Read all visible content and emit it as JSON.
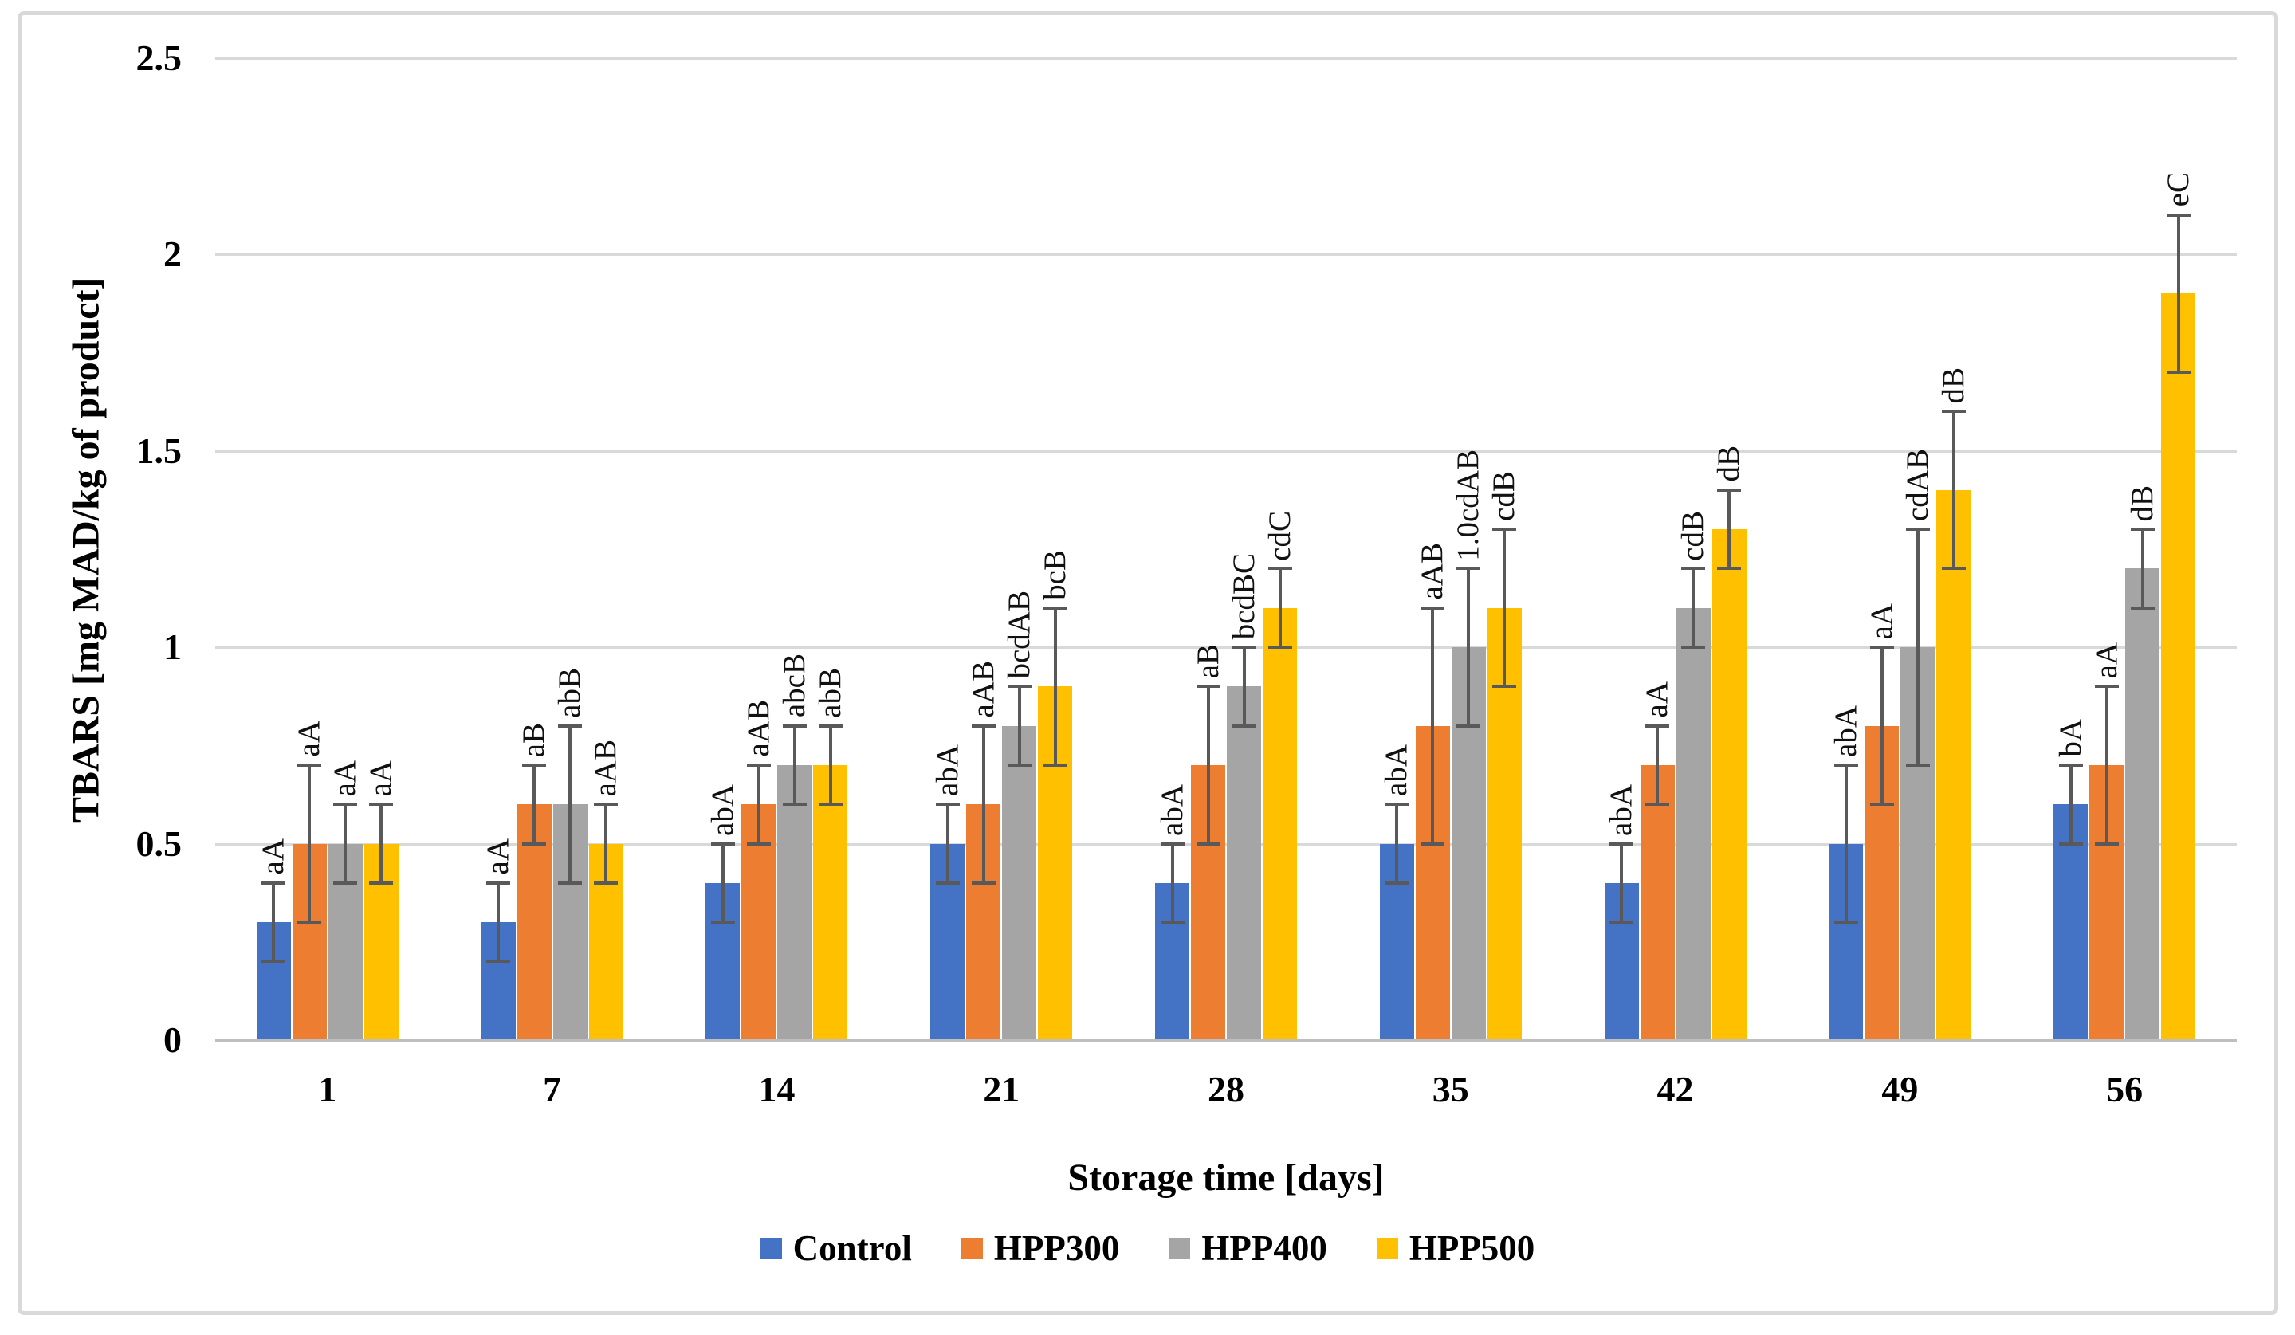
{
  "chart_data": {
    "type": "bar",
    "title": "",
    "xlabel": "Storage time [days]",
    "ylabel": "TBARS [mg MAD/kg of product]",
    "categories": [
      "1",
      "7",
      "14",
      "21",
      "28",
      "35",
      "42",
      "49",
      "56"
    ],
    "ylim": [
      0,
      2.5
    ],
    "yticks": [
      "0",
      "0.5",
      "1",
      "1.5",
      "2",
      "2.5"
    ],
    "grid": true,
    "legend_position": "bottom",
    "error_bar_color": "#595959",
    "gridline_color": "#D9D9D9",
    "axis_line_color": "#BFBFBF",
    "series": [
      {
        "name": "Control",
        "color": "#4472C4",
        "values": [
          0.3,
          0.3,
          0.4,
          0.5,
          0.4,
          0.5,
          0.4,
          0.5,
          0.6
        ],
        "errors": [
          0.1,
          0.1,
          0.1,
          0.1,
          0.1,
          0.1,
          0.1,
          0.2,
          0.1
        ],
        "labels": [
          "aA",
          "aA",
          "abA",
          "abA",
          "abA",
          "abA",
          "abA",
          "abA",
          "bA"
        ]
      },
      {
        "name": "HPP300",
        "color": "#ED7D31",
        "values": [
          0.5,
          0.6,
          0.6,
          0.6,
          0.7,
          0.8,
          0.7,
          0.8,
          0.7
        ],
        "errors": [
          0.2,
          0.1,
          0.1,
          0.2,
          0.2,
          0.3,
          0.1,
          0.2,
          0.2
        ],
        "labels": [
          "aA",
          "aB",
          "aAB",
          "aAB",
          "aB",
          "aAB",
          "aA",
          "aA",
          "aA"
        ]
      },
      {
        "name": "HPP400",
        "color": "#A5A5A5",
        "values": [
          0.5,
          0.6,
          0.7,
          0.8,
          0.9,
          1.0,
          1.1,
          1.0,
          1.2
        ],
        "errors": [
          0.1,
          0.2,
          0.1,
          0.1,
          0.1,
          0.2,
          0.1,
          0.3,
          0.1
        ],
        "labels": [
          "aA",
          "abB",
          "abcB",
          "bcdAB",
          "bcdBC",
          "1.0cdAB",
          "cdB",
          "cdAB",
          "dB"
        ]
      },
      {
        "name": "HPP500",
        "color": "#FFC000",
        "values": [
          0.5,
          0.5,
          0.7,
          0.9,
          1.1,
          1.1,
          1.3,
          1.4,
          1.9
        ],
        "errors": [
          0.1,
          0.1,
          0.1,
          0.2,
          0.1,
          0.2,
          0.1,
          0.2,
          0.2
        ],
        "labels": [
          "aA",
          "aAB",
          "abB",
          "bcB",
          "cdC",
          "cdB",
          "dB",
          "dB",
          "eC"
        ]
      }
    ]
  }
}
